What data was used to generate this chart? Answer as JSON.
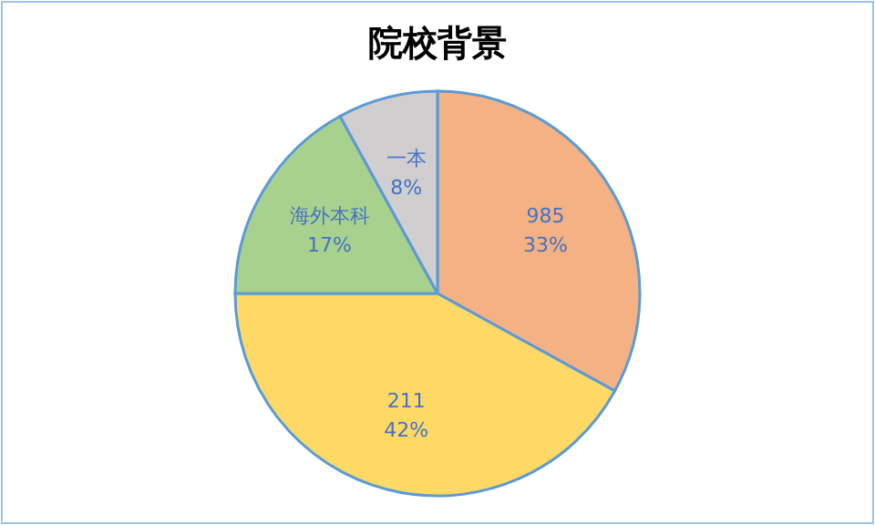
{
  "chart_data": {
    "type": "pie",
    "title": "院校背景",
    "categories": [
      "985",
      "211",
      "海外本科",
      "一本"
    ],
    "values": [
      33,
      42,
      17,
      8
    ],
    "colors": [
      "#f4b183",
      "#ffd966",
      "#a9d18e",
      "#d0cece"
    ],
    "value_labels": [
      "33%",
      "42%",
      "17%",
      "8%"
    ]
  }
}
